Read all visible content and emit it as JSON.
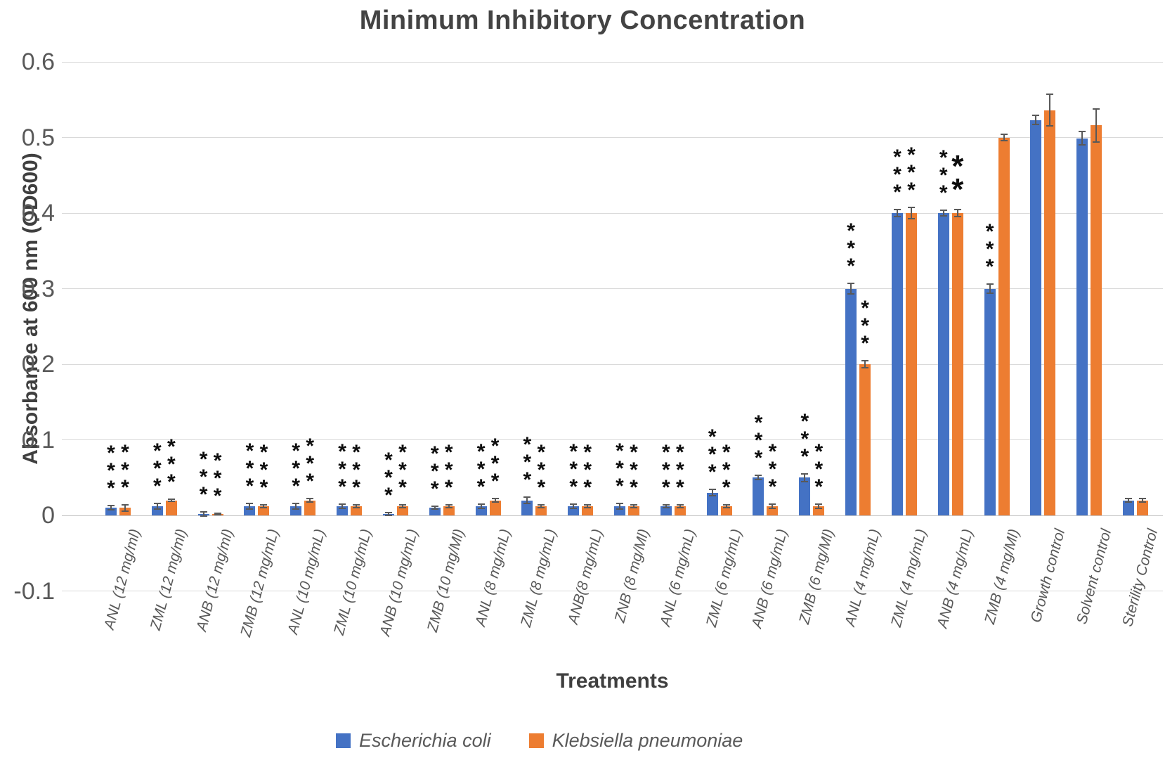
{
  "chart_data": {
    "type": "bar",
    "title": "Minimum Inhibitory Concentration",
    "xlabel": "Treatments",
    "ylabel": "Absorbance at 600 nm (OD600)",
    "ylim": [
      -0.1,
      0.6
    ],
    "ytick_labels": [
      "0.6",
      "0.5",
      "0.4",
      "0.3",
      "0.2",
      "0.1",
      "0",
      "-0.1"
    ],
    "grid": "horizontal",
    "legend_position": "bottom",
    "significance_note": "asterisk columns above bars",
    "categories": [
      "ANL (12 mg/ml)",
      "ZML (12 mg/ml)",
      "ANB (12 mg/ml)",
      "ZMB (12 mg/mL)",
      "ANL (10 mg/mL)",
      "ZML (10 mg/mL)",
      "ANB (10 mg/mL)",
      "ZMB (10 mg/Ml)",
      "ANL (8 mg/mL)",
      "ZML (8 mg/mL)",
      "ANB(8 mg/mL)",
      "ZNB (8 mg/Ml)",
      "ANL (6 mg/mL)",
      "ZML (6 mg/mL)",
      "ANB (6 mg/mL)",
      "ZMB (6 mg/Ml)",
      "ANL (4 mg/mL)",
      "ZML (4 mg/mL)",
      "ANB (4 mg/mL)",
      "ZMB (4 mg/Ml)",
      "Growth control",
      "Solvent control",
      "Sterility Control"
    ],
    "series": [
      {
        "name": "Escherichia coli",
        "color": "#4472C4",
        "values": [
          0.01,
          0.012,
          0.002,
          0.012,
          0.012,
          0.012,
          0.002,
          0.01,
          0.012,
          0.02,
          0.012,
          0.012,
          0.012,
          0.03,
          0.05,
          0.05,
          0.3,
          0.4,
          0.4,
          0.3,
          0.523,
          0.499,
          0.02
        ],
        "errors": [
          0.003,
          0.004,
          0.003,
          0.004,
          0.004,
          0.003,
          0.002,
          0.002,
          0.003,
          0.004,
          0.003,
          0.004,
          0.002,
          0.004,
          0.003,
          0.005,
          0.007,
          0.005,
          0.004,
          0.006,
          0.006,
          0.009,
          0.002
        ],
        "sig": [
          "***",
          "***",
          "***",
          "***",
          "***",
          "***",
          "***",
          "***",
          "***",
          "***",
          "***",
          "***",
          "***",
          "***",
          "***",
          "***",
          "***",
          "***",
          "***",
          "***",
          "",
          "",
          ""
        ]
      },
      {
        "name": "Klebsiella pneumoniae",
        "color": "#ED7D31",
        "values": [
          0.01,
          0.02,
          0.002,
          0.012,
          0.02,
          0.012,
          0.012,
          0.012,
          0.02,
          0.012,
          0.012,
          0.012,
          0.012,
          0.012,
          0.012,
          0.012,
          0.2,
          0.4,
          0.4,
          0.5,
          0.536,
          0.516,
          0.02
        ],
        "errors": [
          0.004,
          0.001,
          0.001,
          0.002,
          0.002,
          0.002,
          0.002,
          0.002,
          0.002,
          0.002,
          0.002,
          0.002,
          0.002,
          0.002,
          0.003,
          0.003,
          0.005,
          0.007,
          0.005,
          0.004,
          0.021,
          0.022,
          0.002
        ],
        "sig": [
          "***",
          "***",
          "***",
          "***",
          "***",
          "***",
          "***",
          "***",
          "***",
          "***",
          "***",
          "***",
          "***",
          "***",
          "***",
          "***",
          "***",
          "***",
          "**",
          "",
          "",
          "",
          ""
        ]
      }
    ]
  }
}
